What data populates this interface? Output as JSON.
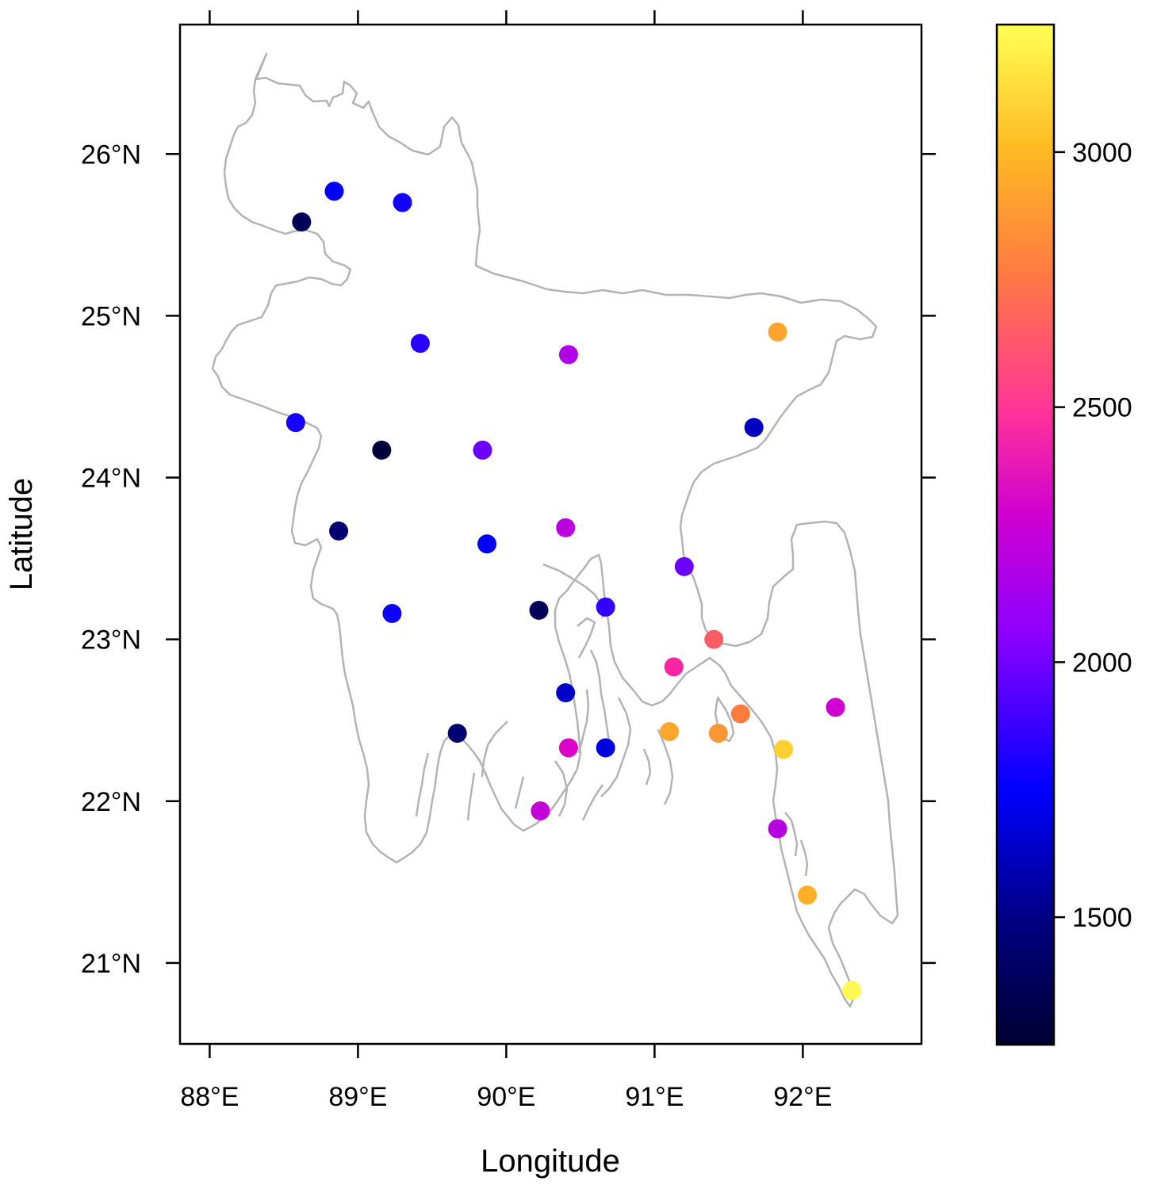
{
  "chart_data": {
    "type": "scatter",
    "xlabel": "Longitude",
    "ylabel": "Latitude",
    "xlim": [
      87.8,
      92.8
    ],
    "ylim": [
      20.5,
      26.8
    ],
    "x_ticks": [
      {
        "value": 88,
        "label": "88°E"
      },
      {
        "value": 89,
        "label": "89°E"
      },
      {
        "value": 90,
        "label": "90°E"
      },
      {
        "value": 91,
        "label": "91°E"
      },
      {
        "value": 92,
        "label": "92°E"
      }
    ],
    "y_ticks": [
      {
        "value": 21,
        "label": "21°N"
      },
      {
        "value": 22,
        "label": "22°N"
      },
      {
        "value": 23,
        "label": "23°N"
      },
      {
        "value": 24,
        "label": "24°N"
      },
      {
        "value": 25,
        "label": "25°N"
      },
      {
        "value": 26,
        "label": "26°N"
      }
    ],
    "colorbar": {
      "range": [
        1250,
        3250
      ],
      "ticks": [
        {
          "value": 1500,
          "label": "1500"
        },
        {
          "value": 2000,
          "label": "2000"
        },
        {
          "value": 2500,
          "label": "2500"
        },
        {
          "value": 3000,
          "label": "3000"
        }
      ],
      "palette": [
        "#000033",
        "#0000ff",
        "#8a00ff",
        "#e600c0",
        "#ff3399",
        "#ff7744",
        "#ffbb22",
        "#ffff55"
      ]
    },
    "points": [
      {
        "lon": 88.62,
        "lat": 25.58,
        "value": 1300
      },
      {
        "lon": 88.84,
        "lat": 25.77,
        "value": 1520
      },
      {
        "lon": 89.3,
        "lat": 25.7,
        "value": 1570
      },
      {
        "lon": 89.42,
        "lat": 24.83,
        "value": 1620
      },
      {
        "lon": 90.42,
        "lat": 24.76,
        "value": 1940
      },
      {
        "lon": 91.83,
        "lat": 24.9,
        "value": 2870
      },
      {
        "lon": 88.58,
        "lat": 24.34,
        "value": 1580
      },
      {
        "lon": 89.16,
        "lat": 24.17,
        "value": 1260
      },
      {
        "lon": 89.84,
        "lat": 24.17,
        "value": 1760
      },
      {
        "lon": 91.67,
        "lat": 24.31,
        "value": 1450
      },
      {
        "lon": 88.87,
        "lat": 23.67,
        "value": 1340
      },
      {
        "lon": 89.87,
        "lat": 23.59,
        "value": 1520
      },
      {
        "lon": 90.4,
        "lat": 23.69,
        "value": 1970
      },
      {
        "lon": 91.2,
        "lat": 23.45,
        "value": 1760
      },
      {
        "lon": 89.23,
        "lat": 23.16,
        "value": 1560
      },
      {
        "lon": 90.22,
        "lat": 23.18,
        "value": 1300
      },
      {
        "lon": 90.67,
        "lat": 23.2,
        "value": 1640
      },
      {
        "lon": 91.4,
        "lat": 23.0,
        "value": 2560
      },
      {
        "lon": 91.13,
        "lat": 22.83,
        "value": 2320
      },
      {
        "lon": 90.4,
        "lat": 22.67,
        "value": 1460
      },
      {
        "lon": 89.67,
        "lat": 22.42,
        "value": 1340
      },
      {
        "lon": 90.42,
        "lat": 22.33,
        "value": 2070
      },
      {
        "lon": 90.67,
        "lat": 22.33,
        "value": 1490
      },
      {
        "lon": 91.1,
        "lat": 22.43,
        "value": 2880
      },
      {
        "lon": 91.43,
        "lat": 22.42,
        "value": 2810
      },
      {
        "lon": 91.58,
        "lat": 22.54,
        "value": 2700
      },
      {
        "lon": 91.87,
        "lat": 22.32,
        "value": 3050
      },
      {
        "lon": 92.22,
        "lat": 22.58,
        "value": 2030
      },
      {
        "lon": 90.23,
        "lat": 21.94,
        "value": 2000
      },
      {
        "lon": 91.83,
        "lat": 21.83,
        "value": 1960
      },
      {
        "lon": 92.03,
        "lat": 21.42,
        "value": 2910
      },
      {
        "lon": 92.33,
        "lat": 20.83,
        "value": 3230
      }
    ]
  }
}
